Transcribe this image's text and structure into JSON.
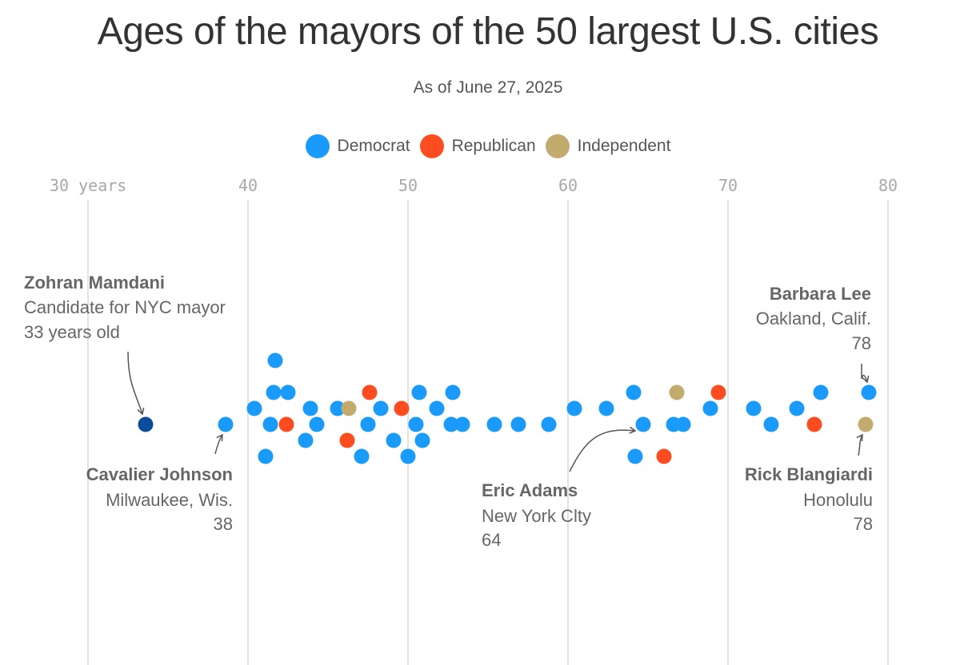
{
  "chart_data": {
    "type": "scatter",
    "title": "Ages of the mayors of the 50 largest U.S. cities",
    "subtitle": "As of June 27, 2025",
    "legend": [
      {
        "name": "Democrat",
        "color": "#1a9bfc"
      },
      {
        "name": "Republican",
        "color": "#fc4c20"
      },
      {
        "name": "Independent",
        "color": "#c2ab6c"
      }
    ],
    "x_ticks": [
      {
        "value": 30,
        "label": "30 years"
      },
      {
        "value": 40,
        "label": "40"
      },
      {
        "value": 50,
        "label": "50"
      },
      {
        "value": 60,
        "label": "60"
      },
      {
        "value": 70,
        "label": "70"
      },
      {
        "value": 80,
        "label": "80"
      }
    ],
    "xlim": [
      30,
      80
    ],
    "grid": "vertical",
    "highlight_color": "#0a4e9b",
    "highlight": {
      "name": "Zohran Mamdani",
      "age": 33.6,
      "party": "Democrat",
      "row": 0
    },
    "points": [
      {
        "age": 38.6,
        "party": "Democrat",
        "row": 0
      },
      {
        "age": 40.4,
        "party": "Democrat",
        "row": 1
      },
      {
        "age": 41.1,
        "party": "Democrat",
        "row": -2
      },
      {
        "age": 41.4,
        "party": "Democrat",
        "row": 0
      },
      {
        "age": 41.6,
        "party": "Democrat",
        "row": 2
      },
      {
        "age": 41.7,
        "party": "Democrat",
        "row": 4
      },
      {
        "age": 42.4,
        "party": "Republican",
        "row": 0
      },
      {
        "age": 42.5,
        "party": "Democrat",
        "row": 2
      },
      {
        "age": 43.6,
        "party": "Democrat",
        "row": -1
      },
      {
        "age": 43.9,
        "party": "Democrat",
        "row": 1
      },
      {
        "age": 44.3,
        "party": "Democrat",
        "row": 0
      },
      {
        "age": 45.6,
        "party": "Democrat",
        "row": 1
      },
      {
        "age": 46.2,
        "party": "Republican",
        "row": -1
      },
      {
        "age": 46.3,
        "party": "Independent",
        "row": 1
      },
      {
        "age": 47.1,
        "party": "Democrat",
        "row": -2
      },
      {
        "age": 47.5,
        "party": "Democrat",
        "row": 0
      },
      {
        "age": 47.6,
        "party": "Republican",
        "row": 2
      },
      {
        "age": 48.3,
        "party": "Democrat",
        "row": 1
      },
      {
        "age": 49.1,
        "party": "Democrat",
        "row": -1
      },
      {
        "age": 49.6,
        "party": "Republican",
        "row": 1
      },
      {
        "age": 50.0,
        "party": "Democrat",
        "row": -2
      },
      {
        "age": 50.5,
        "party": "Democrat",
        "row": 0
      },
      {
        "age": 50.7,
        "party": "Democrat",
        "row": 2
      },
      {
        "age": 50.9,
        "party": "Democrat",
        "row": -1
      },
      {
        "age": 51.8,
        "party": "Democrat",
        "row": 1
      },
      {
        "age": 52.7,
        "party": "Democrat",
        "row": 0
      },
      {
        "age": 52.8,
        "party": "Democrat",
        "row": 2
      },
      {
        "age": 53.4,
        "party": "Democrat",
        "row": 0
      },
      {
        "age": 55.4,
        "party": "Democrat",
        "row": 0
      },
      {
        "age": 56.9,
        "party": "Democrat",
        "row": 0
      },
      {
        "age": 58.8,
        "party": "Democrat",
        "row": 0
      },
      {
        "age": 60.4,
        "party": "Democrat",
        "row": 1
      },
      {
        "age": 62.4,
        "party": "Democrat",
        "row": 1
      },
      {
        "age": 64.1,
        "party": "Democrat",
        "row": 2
      },
      {
        "age": 64.2,
        "party": "Democrat",
        "row": -2
      },
      {
        "age": 64.7,
        "party": "Democrat",
        "row": 0
      },
      {
        "age": 66.0,
        "party": "Republican",
        "row": -2
      },
      {
        "age": 66.6,
        "party": "Democrat",
        "row": 0
      },
      {
        "age": 66.8,
        "party": "Independent",
        "row": 2
      },
      {
        "age": 67.2,
        "party": "Democrat",
        "row": 0
      },
      {
        "age": 68.9,
        "party": "Democrat",
        "row": 1
      },
      {
        "age": 69.4,
        "party": "Republican",
        "row": 2
      },
      {
        "age": 71.6,
        "party": "Democrat",
        "row": 1
      },
      {
        "age": 72.7,
        "party": "Democrat",
        "row": 0
      },
      {
        "age": 74.3,
        "party": "Democrat",
        "row": 1
      },
      {
        "age": 75.4,
        "party": "Republican",
        "row": 0
      },
      {
        "age": 75.8,
        "party": "Democrat",
        "row": 2
      },
      {
        "age": 78.6,
        "party": "Independent",
        "row": 0
      },
      {
        "age": 78.8,
        "party": "Democrat",
        "row": 2
      }
    ],
    "annotations": [
      {
        "id": "mamdani",
        "name": "Zohran Mamdani",
        "line2": "Candidate for NYC mayor",
        "line3": "33 years old",
        "target_age": 33.6,
        "target_row": 0
      },
      {
        "id": "johnson",
        "name": "Cavalier Johnson",
        "line2": "Milwaukee, Wis.",
        "line3": "38",
        "target_age": 38.6,
        "target_row": 0
      },
      {
        "id": "adams",
        "name": "Eric Adams",
        "line2": "New York Clty",
        "line3": "64",
        "target_age": 64.7,
        "target_row": 0
      },
      {
        "id": "lee",
        "name": "Barbara Lee",
        "line2": "Oakland, Calif.",
        "line3": "78",
        "target_age": 78.8,
        "target_row": 2
      },
      {
        "id": "blangiardi",
        "name": "Rick Blangiardi",
        "line2": "Honolulu",
        "line3": "78",
        "target_age": 78.6,
        "target_row": 0
      }
    ]
  }
}
